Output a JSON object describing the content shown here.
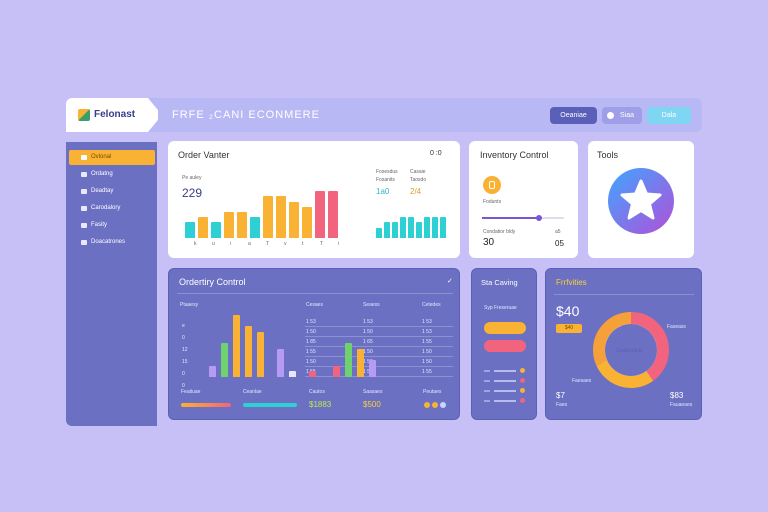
{
  "brand": {
    "name": "Felonast"
  },
  "title": "FRFE ₂CANI ECONMERE",
  "header_buttons": [
    {
      "label": "Oeaniae"
    },
    {
      "label": "Siaa"
    },
    {
      "label": "Dala"
    }
  ],
  "sidebar": {
    "items": [
      {
        "label": "Ovlonal"
      },
      {
        "label": "Ordatng"
      },
      {
        "label": "Deadtay"
      },
      {
        "label": "Carodalory"
      },
      {
        "label": "Fasity"
      },
      {
        "label": "Doacatrones"
      }
    ]
  },
  "order_card": {
    "title": "Order Vanter",
    "more": "0 :0",
    "stat": "229",
    "stat_label": "Pe auley",
    "mini_labels": [
      "Fosesdus",
      "Casaie",
      "Fosanits",
      "Taosdo"
    ],
    "mini_value_a": "1a0",
    "mini_value_b": "2/4",
    "ticks": [
      "k",
      "u",
      "i",
      "a",
      "T",
      "v",
      "t",
      "T",
      "i"
    ]
  },
  "inventory_card": {
    "title": "Inventory Control",
    "item_label": "Fodunts",
    "caption": "Condatior bldy",
    "caption_num": "a5",
    "value": "30",
    "value_right": "05",
    "slider_level": 0.7
  },
  "tools_card": {
    "title": "Tools"
  },
  "ordering_card": {
    "title": "Ordertiry Control",
    "check": "✓",
    "col_labels": [
      "Ptaaesy",
      "Cesaes",
      "Seaess",
      "Cetedes"
    ],
    "y_ticks": [
      "e",
      "0",
      "12",
      "15",
      "0",
      "0"
    ],
    "col_rows": [
      [
        "1 53",
        "1 50",
        "1 85",
        "1 55",
        "1 50",
        "1 55"
      ],
      [
        "1 53",
        "1 50",
        "1 65",
        "1 50",
        "1 50",
        "1 55"
      ],
      [
        "1 53",
        "1 53",
        "1 55",
        "1 50",
        "1 50",
        "1 55"
      ]
    ],
    "foot_labels": [
      "Featiuae",
      "Ceanlae",
      "Cautos",
      "Saasaes",
      "Peutaes"
    ],
    "foot_values": [
      "$1883",
      "$500"
    ]
  },
  "stats_card": {
    "title": "Sta Caving",
    "label": "Syp Freseruae"
  },
  "profile_card": {
    "title": "Frrfvities",
    "big": "$40",
    "badge": "$40",
    "donut_label_right": "Faseass",
    "donut_center": "Cnaltuodulo",
    "donut_label_bottom": "Faesaes",
    "bottom_left": "$7",
    "bottom_left_sub": "Faes",
    "bottom_right": "$83",
    "bottom_right_sub": "Fauaeaes"
  },
  "colors": {
    "accent": "#f9b233",
    "teal": "#2fd0d4",
    "pink": "#f2647d",
    "purple": "#6b70c3"
  },
  "chart_data": [
    {
      "type": "bar",
      "title": "Order Vanter",
      "values": [
        3,
        4,
        3,
        5,
        5,
        4,
        8,
        8,
        7,
        6,
        9,
        9
      ]
    },
    {
      "type": "bar",
      "values": [
        2,
        3,
        3,
        4,
        4,
        3,
        4,
        4,
        4
      ]
    },
    {
      "type": "bar",
      "title": "Ordertiry Control",
      "values": [
        2,
        6,
        11,
        9,
        8,
        5,
        1,
        1,
        2,
        6,
        5,
        3
      ]
    },
    {
      "type": "pie",
      "title": "Frrfvities",
      "values": [
        40,
        28,
        32
      ]
    }
  ]
}
